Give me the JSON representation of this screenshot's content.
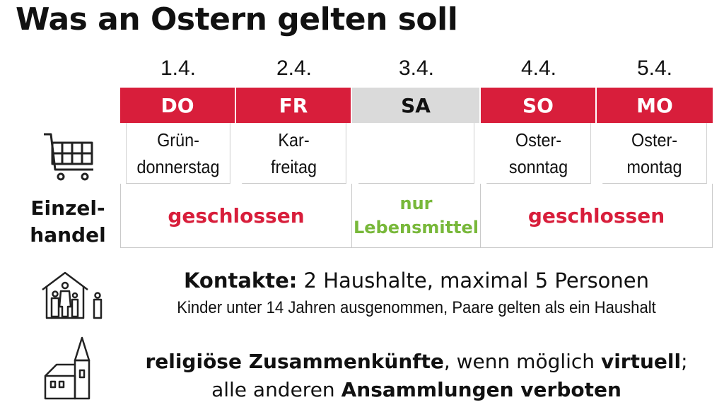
{
  "title": "Was an Ostern gelten soll",
  "days": [
    {
      "date": "1.4.",
      "day": "DO",
      "holiday": "Grün-\ndonnerstag",
      "highlight": true
    },
    {
      "date": "2.4.",
      "day": "FR",
      "holiday": "Kar-\nfreitag",
      "highlight": true
    },
    {
      "date": "3.4.",
      "day": "SA",
      "holiday": "",
      "highlight": false
    },
    {
      "date": "4.4.",
      "day": "SO",
      "holiday": "Oster-\nsonntag",
      "highlight": true
    },
    {
      "date": "5.4.",
      "day": "MO",
      "holiday": "Oster-\nmontag",
      "highlight": true
    }
  ],
  "retail": {
    "label": "Einzel-\nhandel",
    "status_left": "geschlossen",
    "status_middle": "nur\nLebensmittel",
    "status_right": "geschlossen"
  },
  "contacts": {
    "heading": "Kontakte:",
    "text": " 2 Haushalte, maximal 5 Personen",
    "note": "Kinder unter 14 Jahren ausgenommen, Paare gelten als ein Haushalt"
  },
  "religion": {
    "part1_bold": "religiöse Zusammenkünfte",
    "part2": ", wenn möglich ",
    "part3_bold": "virtuell",
    "part4": ";",
    "part5": "alle anderen ",
    "part6_bold": "Ansammlungen verboten"
  },
  "colors": {
    "red": "#d81e3b",
    "green": "#78b83a",
    "gray": "#dadada"
  },
  "icons": [
    "shopping-cart-icon",
    "house-family-icon",
    "church-icon"
  ]
}
